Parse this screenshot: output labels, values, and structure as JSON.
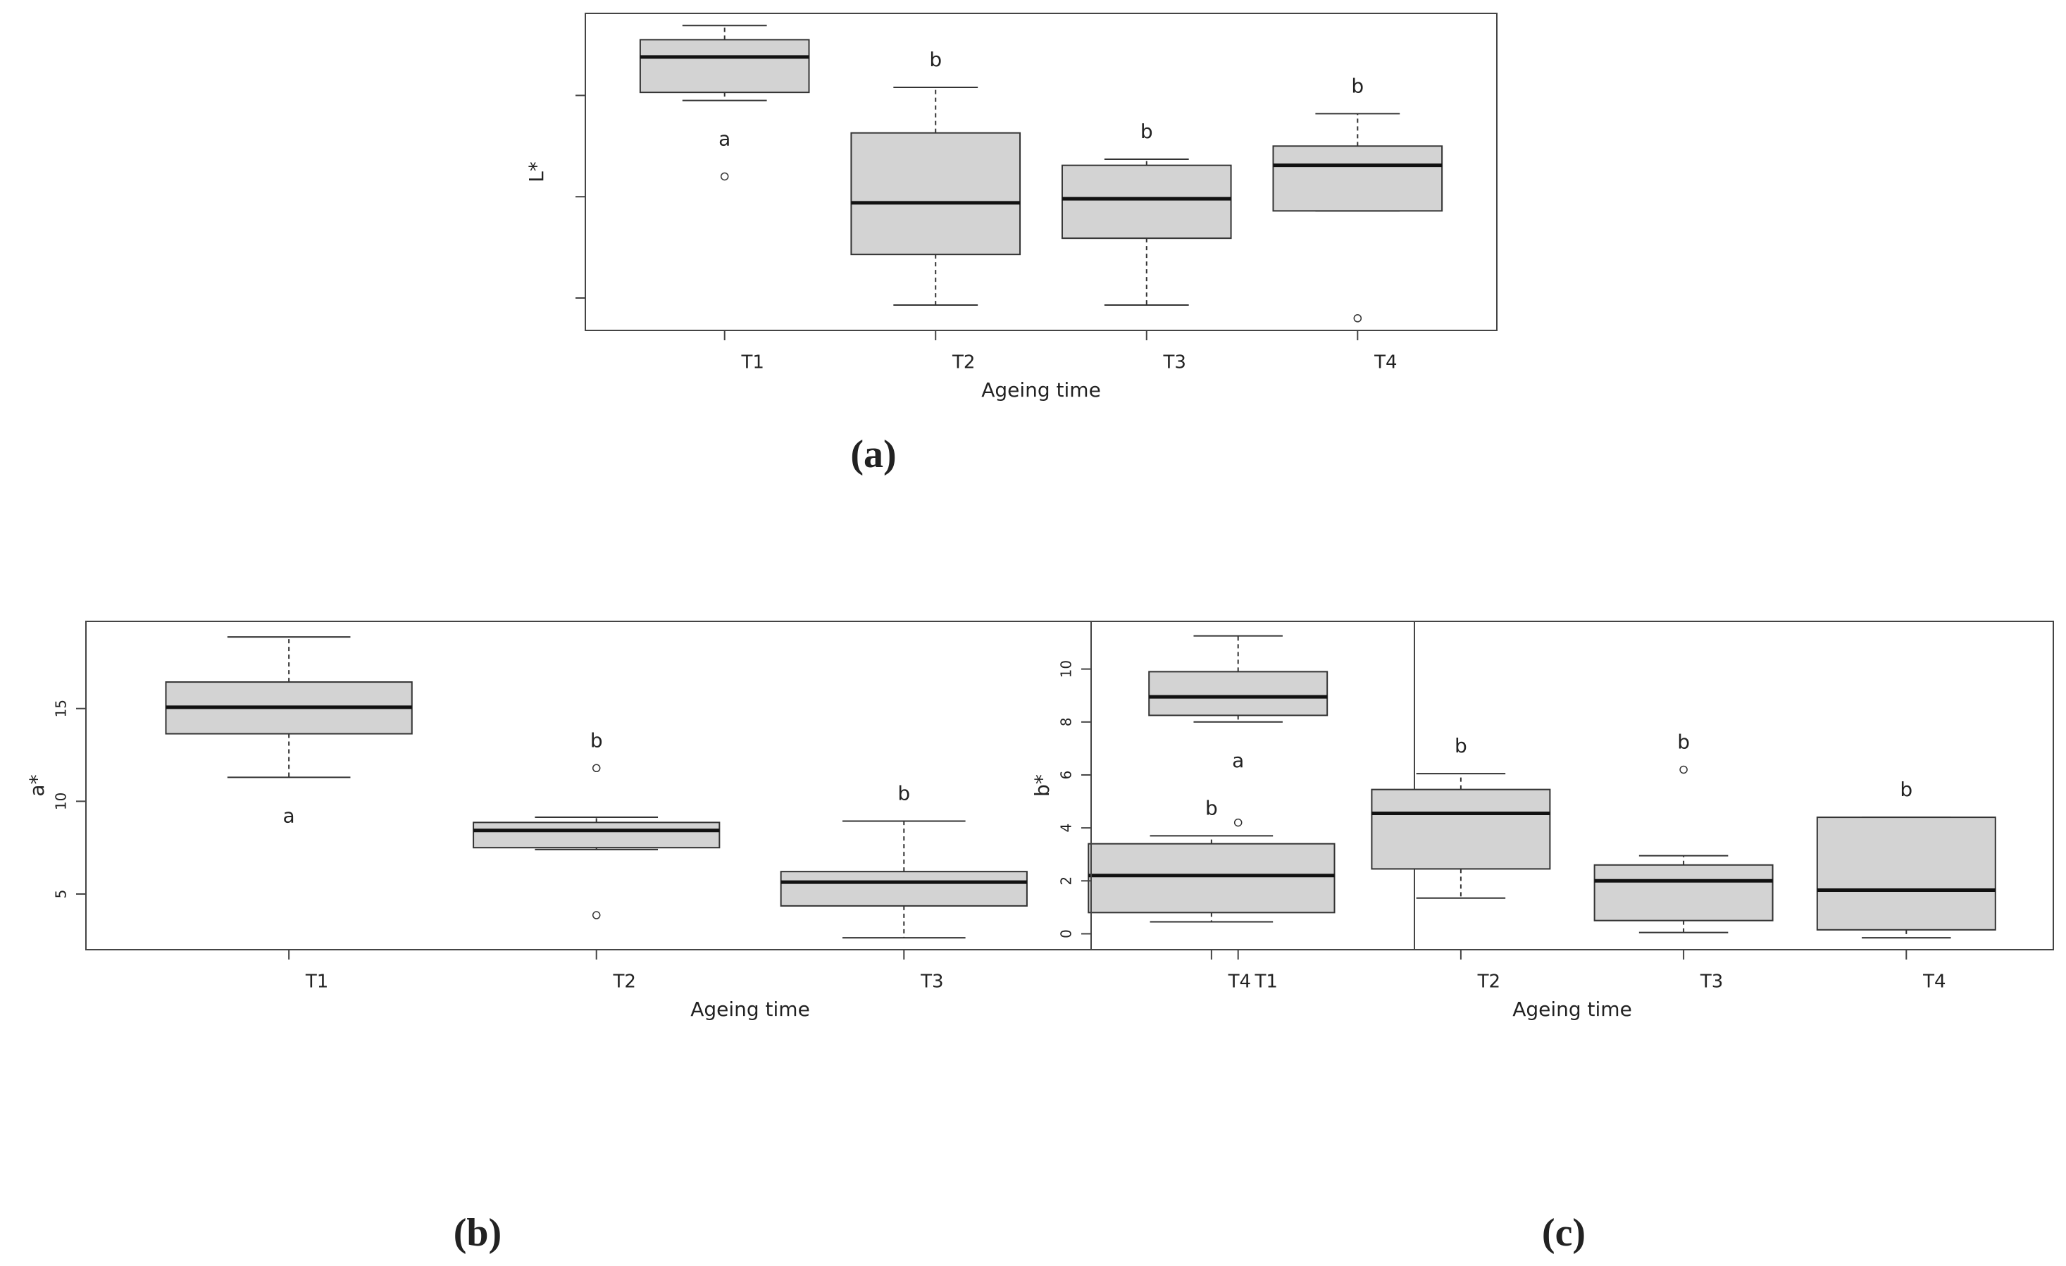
{
  "chart_data": [
    {
      "type": "box",
      "panel_label": "(a)",
      "ylabel": "L*",
      "xlabel": "Ageing time",
      "categories": [
        "T1",
        "T2",
        "T3",
        "T4"
      ],
      "boxes": [
        {
          "min": 2.95,
          "q1": 3.03,
          "median": 3.38,
          "q3": 3.55,
          "max": 3.69,
          "outliers": [
            2.2
          ]
        },
        {
          "min": 0.93,
          "q1": 1.43,
          "median": 1.94,
          "q3": 2.63,
          "max": 3.08,
          "outliers": []
        },
        {
          "min": 0.93,
          "q1": 1.59,
          "median": 1.98,
          "q3": 2.31,
          "max": 2.37,
          "outliers": []
        },
        {
          "min": 1.86,
          "q1": 1.86,
          "median": 2.31,
          "q3": 2.5,
          "max": 2.82,
          "outliers": [
            0.8
          ]
        }
      ],
      "group_labels": [
        "a",
        "b",
        "b",
        "b"
      ],
      "ylim": [
        0.68,
        3.81
      ],
      "yticks": [
        1,
        2,
        3
      ],
      "ytick_labels": false,
      "fill": "#d3d3d3"
    },
    {
      "type": "box",
      "panel_label": "(b)",
      "ylabel": "a*",
      "xlabel": "Ageing time",
      "categories": [
        "T1",
        "T2",
        "T3",
        "T4"
      ],
      "boxes": [
        {
          "min": 11.29,
          "q1": 13.64,
          "median": 15.07,
          "q3": 16.43,
          "max": 18.86,
          "outliers": []
        },
        {
          "min": 7.4,
          "q1": 7.5,
          "median": 8.43,
          "q3": 8.86,
          "max": 9.14,
          "outliers": [
            11.79,
            3.86
          ]
        },
        {
          "min": 2.64,
          "q1": 4.36,
          "median": 5.64,
          "q3": 6.21,
          "max": 8.93,
          "outliers": []
        },
        {
          "min": 3.5,
          "q1": 4.0,
          "median": 6.0,
          "q3": 7.71,
          "max": 8.14,
          "outliers": []
        }
      ],
      "group_labels": [
        "a",
        "b",
        "b",
        "b"
      ],
      "ylim": [
        2.0,
        19.7
      ],
      "yticks": [
        5,
        10,
        15
      ],
      "ytick_labels": true,
      "fill": "#d3d3d3"
    },
    {
      "type": "box",
      "panel_label": "(c)",
      "ylabel": "b*",
      "xlabel": "Ageing time",
      "categories": [
        "T1",
        "T2",
        "T3",
        "T4"
      ],
      "boxes": [
        {
          "min": 8.0,
          "q1": 8.25,
          "median": 8.95,
          "q3": 9.9,
          "max": 11.25,
          "outliers": [
            4.2
          ]
        },
        {
          "min": 1.35,
          "q1": 2.45,
          "median": 4.55,
          "q3": 5.45,
          "max": 6.05,
          "outliers": []
        },
        {
          "min": 0.05,
          "q1": 0.5,
          "median": 2.0,
          "q3": 2.6,
          "max": 2.95,
          "outliers": [
            6.2
          ]
        },
        {
          "min": -0.15,
          "q1": 0.15,
          "median": 1.65,
          "q3": 4.4,
          "max": 4.4,
          "outliers": []
        }
      ],
      "group_labels": [
        "a",
        "b",
        "b",
        "b"
      ],
      "ylim": [
        -0.6,
        11.8
      ],
      "yticks": [
        0,
        2,
        4,
        6,
        8,
        10
      ],
      "ytick_labels": true,
      "fill": "#d3d3d3"
    }
  ]
}
